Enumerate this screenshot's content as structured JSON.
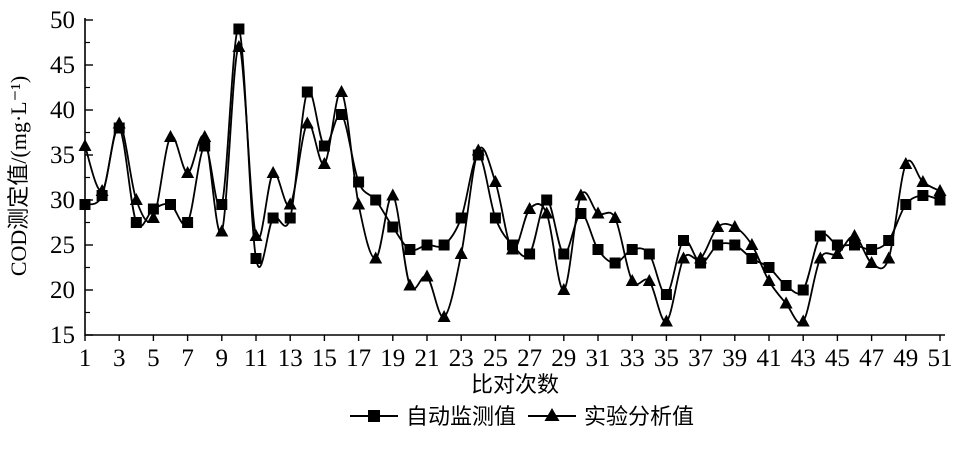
{
  "chart_data": {
    "type": "line",
    "title": "",
    "xlabel": "比对次数",
    "ylabel": "COD测定值/(mg·L⁻¹)",
    "grid": false,
    "legend_position": "bottom",
    "xlim": [
      1,
      51
    ],
    "ylim": [
      15,
      50
    ],
    "y_major_ticks": [
      15,
      20,
      25,
      30,
      35,
      40,
      45,
      50
    ],
    "y_minor_ticks": [
      17.5,
      22.5,
      27.5,
      32.5,
      37.5,
      42.5,
      47.5
    ],
    "x_tick_labels": [
      1,
      3,
      5,
      7,
      9,
      11,
      13,
      15,
      17,
      19,
      21,
      23,
      25,
      27,
      29,
      31,
      33,
      35,
      37,
      39,
      41,
      43,
      45,
      47,
      49,
      51
    ],
    "x": [
      1,
      2,
      3,
      4,
      5,
      6,
      7,
      8,
      9,
      10,
      11,
      12,
      13,
      14,
      15,
      16,
      17,
      18,
      19,
      20,
      21,
      22,
      23,
      24,
      25,
      26,
      27,
      28,
      29,
      30,
      31,
      32,
      33,
      34,
      35,
      36,
      37,
      38,
      39,
      40,
      41,
      42,
      43,
      44,
      45,
      46,
      47,
      48,
      49,
      50,
      51
    ],
    "line_color": "#000000",
    "series": [
      {
        "name": "自动监测值",
        "marker": "square",
        "color": "#000000",
        "values": [
          29.5,
          30.5,
          38,
          27.5,
          29,
          29.5,
          27.5,
          36,
          29.5,
          49,
          23.5,
          28,
          28,
          42,
          36,
          39.5,
          32,
          30,
          27,
          24.5,
          25,
          25,
          28,
          35,
          28,
          25,
          24,
          30,
          24,
          28.5,
          24.5,
          23,
          24.5,
          24,
          19.5,
          25.5,
          23,
          25,
          25,
          23.5,
          22.5,
          20.5,
          20,
          26,
          25,
          25,
          24.5,
          25.5,
          29.5,
          30.5,
          30
        ]
      },
      {
        "name": "实验分析值",
        "marker": "triangle",
        "color": "#000000",
        "values": [
          36,
          31,
          38.5,
          30,
          28,
          37,
          33,
          37,
          26.5,
          47,
          26,
          33,
          29.5,
          38.5,
          34,
          42,
          29.5,
          23.5,
          30.5,
          20.5,
          21.5,
          17,
          24,
          35.5,
          32,
          24.5,
          29,
          28.5,
          20,
          30.5,
          28.5,
          28,
          21,
          21,
          16.5,
          23.5,
          23.5,
          27,
          27,
          25,
          21,
          18.5,
          16.5,
          23.5,
          24,
          26,
          23,
          23.5,
          34,
          32,
          31
        ]
      }
    ]
  }
}
